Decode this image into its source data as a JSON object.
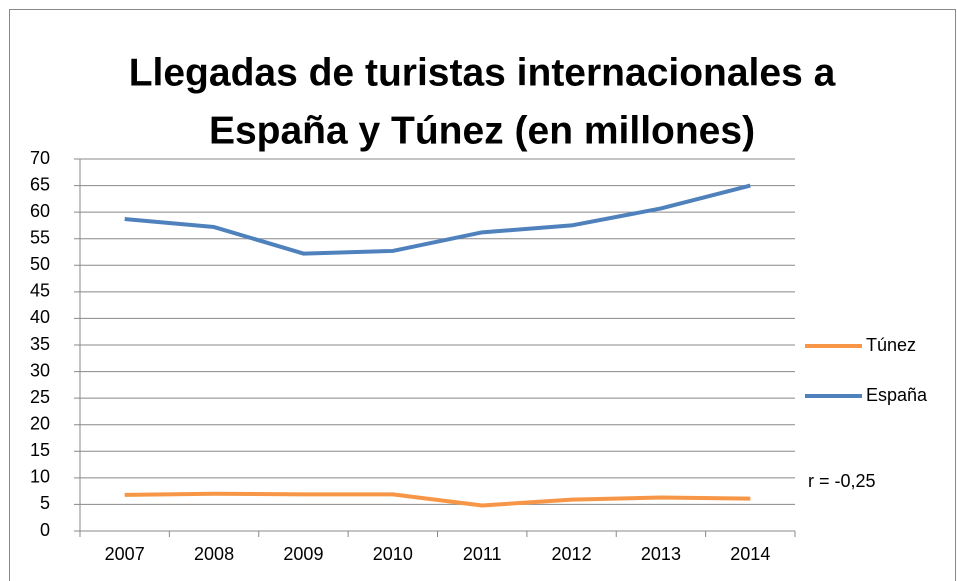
{
  "chart_data": {
    "type": "line",
    "title": [
      "Llegadas de turistas internacionales a",
      "España y Túnez (en millones)"
    ],
    "categories": [
      "2007",
      "2008",
      "2009",
      "2010",
      "2011",
      "2012",
      "2013",
      "2014"
    ],
    "series": [
      {
        "name": "Túnez",
        "color": "#f79646",
        "values": [
          6.8,
          7.0,
          6.9,
          6.9,
          4.8,
          5.9,
          6.3,
          6.1
        ]
      },
      {
        "name": "España",
        "color": "#4f81bd",
        "values": [
          58.7,
          57.2,
          52.2,
          52.7,
          56.2,
          57.5,
          60.7,
          65.0
        ]
      }
    ],
    "ylim": [
      0,
      70
    ],
    "yticks": [
      0,
      5,
      10,
      15,
      20,
      25,
      30,
      35,
      40,
      45,
      50,
      55,
      60,
      65,
      70
    ],
    "grid": true,
    "legend": "right",
    "annotation": "r = -0,25"
  }
}
